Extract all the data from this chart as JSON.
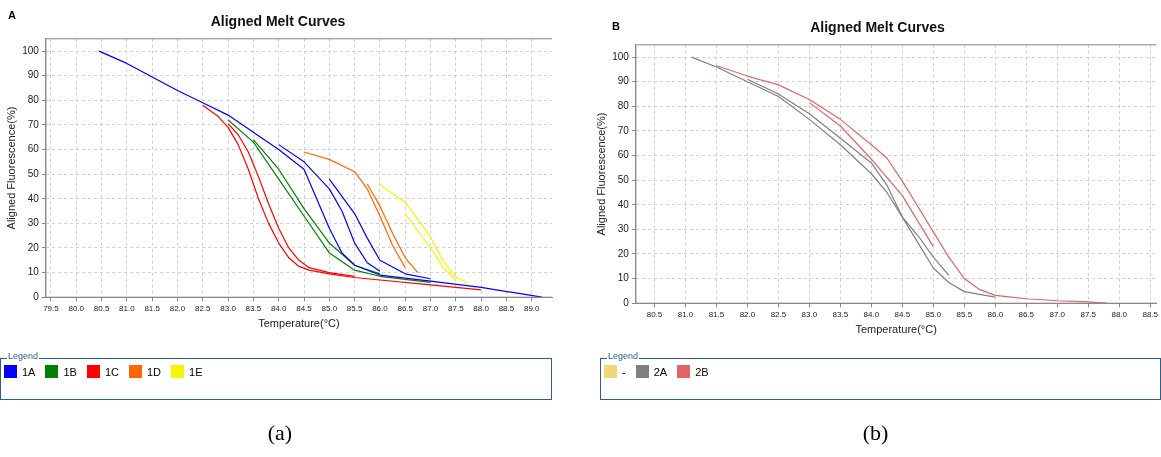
{
  "chart_data": [
    {
      "type": "line",
      "title": "Aligned Melt Curves",
      "xlabel": "Temperature(°C)",
      "ylabel": "Aligned Fluorescence(%)",
      "legend_title": "Legend",
      "annotations": [
        "A",
        "(a)"
      ],
      "xlim": [
        79.4,
        89.4
      ],
      "ylim": [
        0,
        105
      ],
      "xticks": [
        {
          "value": 79.5,
          "label": "79.5"
        },
        {
          "value": 80,
          "label": "80.0"
        },
        {
          "value": 80.5,
          "label": "80.5"
        },
        {
          "value": 81,
          "label": "81.0"
        },
        {
          "value": 81.5,
          "label": "81.5"
        },
        {
          "value": 82,
          "label": "82.0"
        },
        {
          "value": 82.5,
          "label": "82.5"
        },
        {
          "value": 83,
          "label": "83.0"
        },
        {
          "value": 83.5,
          "label": "83.5"
        },
        {
          "value": 84,
          "label": "84.0"
        },
        {
          "value": 84.5,
          "label": "84.5"
        },
        {
          "value": 85,
          "label": "85.0"
        },
        {
          "value": 85.5,
          "label": "85.5"
        },
        {
          "value": 86,
          "label": "86.0"
        },
        {
          "value": 86.5,
          "label": "86.5"
        },
        {
          "value": 87,
          "label": "87.0"
        },
        {
          "value": 87.5,
          "label": "87.5"
        },
        {
          "value": 88,
          "label": "88.0"
        },
        {
          "value": 88.5,
          "label": "88.5"
        },
        {
          "value": 89,
          "label": "89.0"
        }
      ],
      "yticks": [
        0,
        10,
        20,
        30,
        40,
        50,
        60,
        70,
        80,
        90,
        100
      ],
      "grid": true,
      "legend": "bottom",
      "marker": "none",
      "line_style": "solid",
      "series": [
        {
          "name": "1A",
          "color": "#0000ff",
          "x": [
            80.45,
            81,
            81.5,
            82,
            82.5,
            83,
            83.5,
            84,
            84.5,
            84.75,
            85,
            85.25,
            85.5,
            86,
            87,
            88,
            89.2
          ],
          "values": [
            100,
            95,
            89.5,
            84,
            79,
            74,
            67,
            60,
            52,
            40,
            28,
            18,
            13,
            9,
            6.5,
            4,
            0
          ]
        },
        {
          "color": "#0000ff",
          "x": [
            84,
            84.5,
            85,
            85.25,
            85.5,
            85.75,
            86
          ],
          "values": [
            62,
            55,
            44,
            35,
            22,
            14,
            10.5
          ]
        },
        {
          "color": "#0000ff",
          "x": [
            85,
            85.5,
            85.75,
            86,
            86.5,
            87
          ],
          "values": [
            48,
            34,
            24,
            15,
            9.5,
            7.5
          ]
        },
        {
          "name": "1B",
          "color": "#008000",
          "x": [
            83,
            83.5,
            84,
            84.5,
            85,
            85.5,
            86,
            87
          ],
          "values": [
            72,
            63,
            48,
            33,
            18,
            11,
            8.5,
            6
          ]
        },
        {
          "color": "#008000",
          "x": [
            83.5,
            84,
            84.5,
            85,
            85.5,
            86
          ],
          "values": [
            64,
            52,
            36,
            22,
            13,
            9.5
          ]
        },
        {
          "name": "1C",
          "color": "#ff0000",
          "x": [
            82.5,
            82.8,
            83,
            83.2,
            83.4,
            83.6,
            83.8,
            84,
            84.2,
            84.4,
            84.6,
            85,
            85.5,
            86,
            87,
            88
          ],
          "values": [
            78,
            73.5,
            69,
            62,
            52,
            40,
            30,
            22,
            16,
            12.5,
            11,
            9.5,
            8,
            7,
            5,
            3
          ]
        },
        {
          "color": "#ff0000",
          "x": [
            83,
            83.2,
            83.4,
            83.6,
            83.8,
            84,
            84.2,
            84.4,
            84.6,
            85,
            85.5
          ],
          "values": [
            70.5,
            66,
            59,
            49,
            38,
            28,
            20,
            15,
            12,
            10,
            8.5
          ]
        },
        {
          "name": "1D",
          "color": "#ff6600",
          "x": [
            84.5,
            85,
            85.5,
            85.75,
            86,
            86.25,
            86.5
          ],
          "values": [
            59,
            56,
            51,
            44,
            33,
            21,
            12
          ]
        },
        {
          "color": "#ff6600",
          "x": [
            85.75,
            86,
            86.25,
            86.5,
            86.75
          ],
          "values": [
            46,
            37,
            26,
            16,
            10
          ]
        },
        {
          "name": "1E",
          "color": "#f5f500",
          "x": [
            86,
            86.5,
            87,
            87.25,
            87.5,
            87.75
          ],
          "values": [
            45.7,
            38.6,
            24.5,
            14.7,
            8.3,
            5.5
          ]
        },
        {
          "color": "#f5f500",
          "x": [
            86.5,
            87,
            87.25,
            87.5
          ],
          "values": [
            34,
            20,
            12,
            7
          ]
        }
      ]
    },
    {
      "type": "line",
      "title": "Aligned Melt Curves",
      "xlabel": "Temperature(°C)",
      "ylabel": "Aligned Fluorescence(%)",
      "legend_title": "Legend",
      "annotations": [
        "B",
        "(b)"
      ],
      "xlim": [
        80.2,
        88.6
      ],
      "ylim": [
        0,
        105
      ],
      "xticks": [
        {
          "value": 80.5,
          "label": "80.5"
        },
        {
          "value": 81,
          "label": "81.0"
        },
        {
          "value": 81.5,
          "label": "81.5"
        },
        {
          "value": 82,
          "label": "82.0"
        },
        {
          "value": 82.5,
          "label": "82.5"
        },
        {
          "value": 83,
          "label": "83.0"
        },
        {
          "value": 83.5,
          "label": "83.5"
        },
        {
          "value": 84,
          "label": "84.0"
        },
        {
          "value": 84.5,
          "label": "84.5"
        },
        {
          "value": 85,
          "label": "85.0"
        },
        {
          "value": 85.5,
          "label": "85.5"
        },
        {
          "value": 86,
          "label": "86.0"
        },
        {
          "value": 86.5,
          "label": "86.5"
        },
        {
          "value": 87,
          "label": "87.0"
        },
        {
          "value": 87.5,
          "label": "87.5"
        },
        {
          "value": 88,
          "label": "88.0"
        },
        {
          "value": 88.5,
          "label": "88.5"
        }
      ],
      "yticks": [
        0,
        10,
        20,
        30,
        40,
        50,
        60,
        70,
        80,
        90,
        100
      ],
      "grid": true,
      "legend": "bottom",
      "marker": "none",
      "line_style": "solid",
      "series": [
        {
          "name": "-",
          "color": "#f0d878"
        },
        {
          "name": "2A",
          "color": "#808080",
          "x": [
            81.1,
            81.5,
            82,
            82.5,
            83,
            83.5,
            84,
            84.25,
            84.5,
            84.75,
            85,
            85.25,
            85.5,
            86
          ],
          "values": [
            100,
            96,
            90,
            84,
            74.7,
            64.4,
            52.6,
            45,
            35,
            24.6,
            14.3,
            8.4,
            4.7,
            2.5
          ]
        },
        {
          "color": "#808080",
          "x": [
            82,
            82.5,
            83,
            83.5,
            84,
            84.25,
            84.5,
            84.75,
            85,
            85.25
          ],
          "values": [
            91,
            85,
            77,
            67,
            57,
            48,
            35,
            27.5,
            18.7,
            11.3
          ]
        },
        {
          "name": "2B",
          "color": "#e06666",
          "x": [
            81.5,
            82,
            82.5,
            83,
            83.5,
            84,
            84.25,
            84.5,
            84.75,
            85,
            85.25,
            85.5,
            85.75,
            86,
            86.5,
            87,
            87.5,
            87.8
          ],
          "values": [
            96.5,
            92.3,
            88.7,
            82.8,
            74.7,
            64.4,
            59,
            49.6,
            39.3,
            29,
            18.7,
            10,
            5.5,
            3.2,
            1.8,
            1,
            0.5,
            0
          ]
        },
        {
          "color": "#e06666",
          "x": [
            83,
            83.5,
            84,
            84.5,
            85
          ],
          "values": [
            81.5,
            72,
            58.5,
            43.7,
            23
          ]
        }
      ]
    }
  ]
}
